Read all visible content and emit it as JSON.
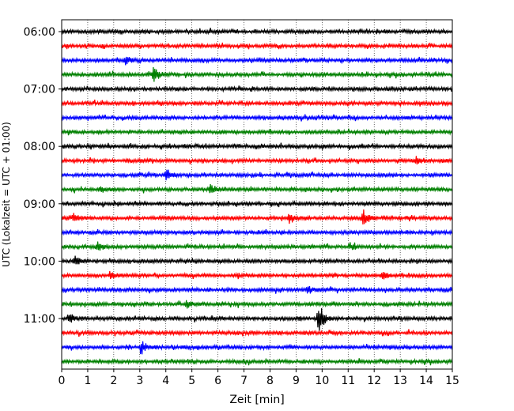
{
  "chart_data": {
    "type": "line",
    "subtype": "helicorder",
    "xlabel": "Zeit  [min]",
    "ylabel": "UTC (Lokalzeit = UTC + 01:00)",
    "xlim": [
      0,
      15
    ],
    "x_ticks": [
      0,
      1,
      2,
      3,
      4,
      5,
      6,
      7,
      8,
      9,
      10,
      11,
      12,
      13,
      14,
      15
    ],
    "y_tick_labels": [
      "06:00",
      "07:00",
      "08:00",
      "09:00",
      "10:00",
      "11:00"
    ],
    "row_minutes": 15,
    "start_time": "06:00",
    "row_count": 24,
    "grid": "vertical-dotted",
    "trace_colors": [
      "#000000",
      "#ff0000",
      "#0000ff",
      "#008000"
    ],
    "events": [
      {
        "row": 2,
        "minute": 2.45,
        "amp": 0.5
      },
      {
        "row": 3,
        "minute": 3.5,
        "amp": 1.2
      },
      {
        "row": 9,
        "minute": 13.6,
        "amp": 0.5
      },
      {
        "row": 10,
        "minute": 4.0,
        "amp": 0.7
      },
      {
        "row": 11,
        "minute": 1.5,
        "amp": 0.45
      },
      {
        "row": 11,
        "minute": 5.7,
        "amp": 0.8
      },
      {
        "row": 13,
        "minute": 0.45,
        "amp": 0.7
      },
      {
        "row": 13,
        "minute": 8.75,
        "amp": 0.7
      },
      {
        "row": 13,
        "minute": 11.55,
        "amp": 1.3
      },
      {
        "row": 15,
        "minute": 1.35,
        "amp": 0.7
      },
      {
        "row": 15,
        "minute": 11.05,
        "amp": 0.5
      },
      {
        "row": 16,
        "minute": 0.5,
        "amp": 0.7
      },
      {
        "row": 17,
        "minute": 1.85,
        "amp": 0.6
      },
      {
        "row": 17,
        "minute": 12.3,
        "amp": 0.55
      },
      {
        "row": 18,
        "minute": 9.45,
        "amp": 0.55
      },
      {
        "row": 19,
        "minute": 4.8,
        "amp": 0.5
      },
      {
        "row": 20,
        "minute": 0.3,
        "amp": 0.5
      },
      {
        "row": 20,
        "minute": 9.85,
        "amp": 2.3
      },
      {
        "row": 22,
        "minute": 3.05,
        "amp": 1.0
      }
    ]
  }
}
